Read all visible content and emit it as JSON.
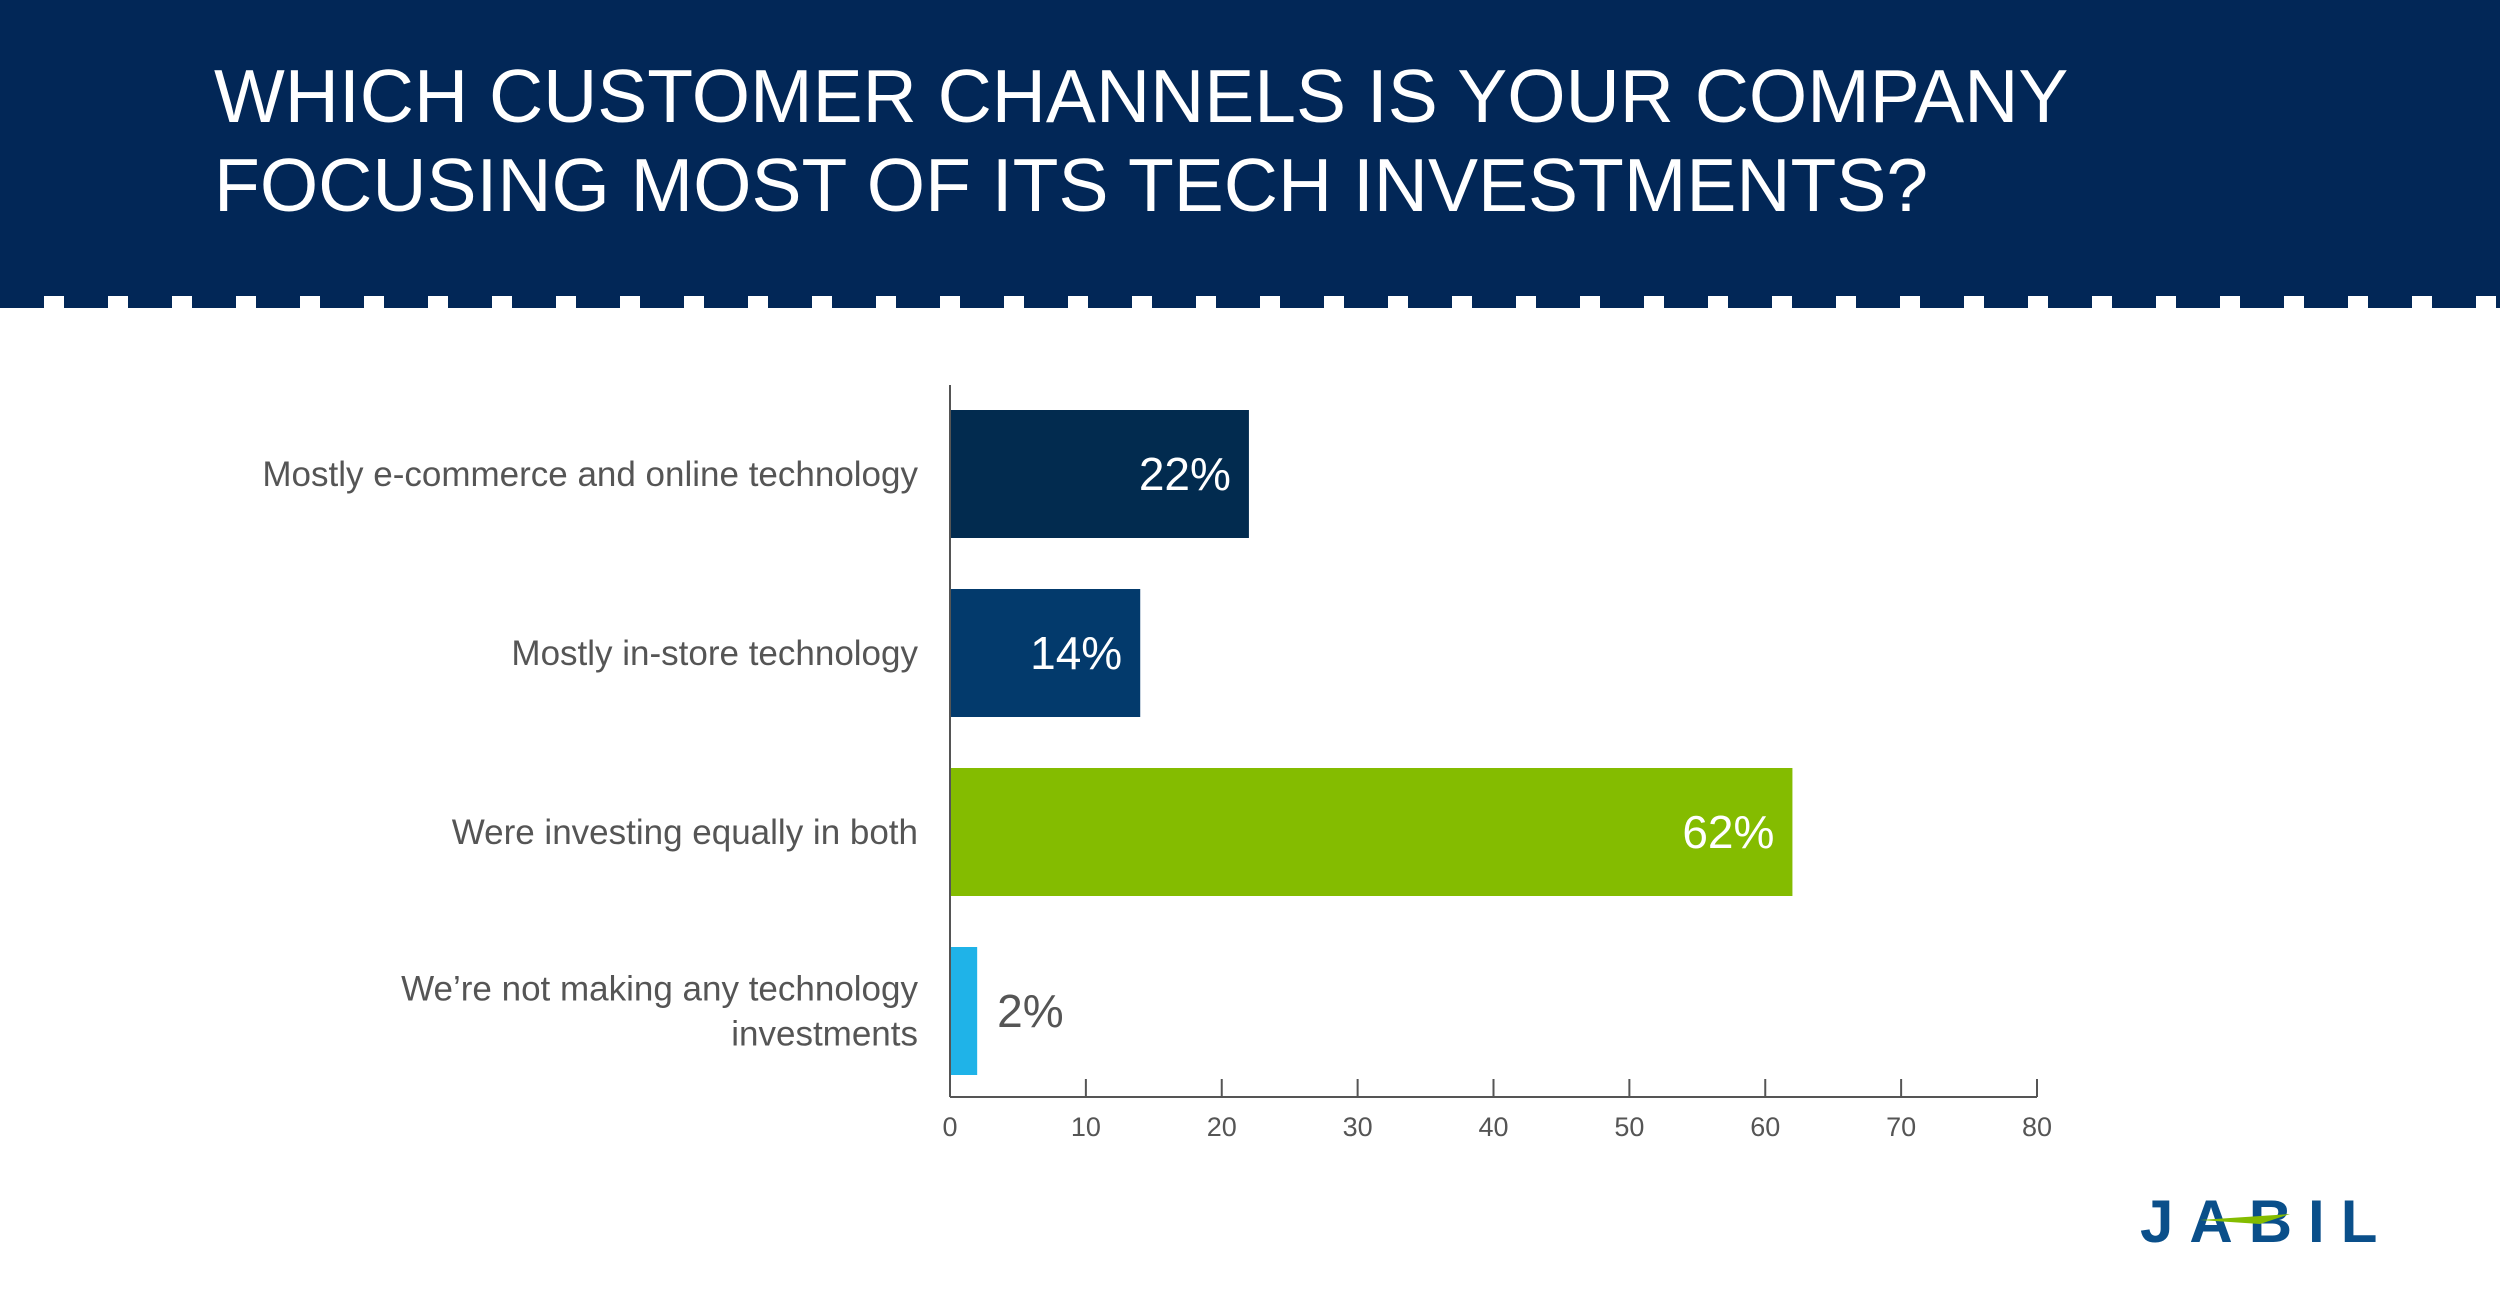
{
  "header": {
    "title_line1": "WHICH CUSTOMER CHANNELS IS YOUR COMPANY",
    "title_line2": "FOCUSING MOST OF ITS TECH INVESTMENTS?"
  },
  "logo": {
    "text": "JABIL",
    "color": "#0a4f8a"
  },
  "colors": {
    "header_bg": "#022757",
    "axis": "#555555",
    "label_text": "#555555"
  },
  "chart_data": {
    "type": "bar",
    "orientation": "horizontal",
    "title": "",
    "xlabel": "",
    "ylabel": "",
    "xlim": [
      0,
      80
    ],
    "x_ticks": [
      "0",
      "10",
      "20",
      "30",
      "40",
      "50",
      "60",
      "70",
      "80"
    ],
    "grid": false,
    "categories": [
      [
        "Mostly e-commerce and online technology"
      ],
      [
        "Mostly in-store technology"
      ],
      [
        "Were investing equally in both"
      ],
      [
        "We’re not making any technology",
        "investments"
      ]
    ],
    "values": [
      22,
      14,
      62,
      2
    ],
    "data_labels": [
      "22%",
      "14%",
      "62%",
      "2%"
    ],
    "bar_colors": [
      "#022b4f",
      "#033a6c",
      "#84bc00",
      "#1fb3e8"
    ],
    "label_colors": [
      "#ffffff",
      "#ffffff",
      "#ffffff",
      "#555555"
    ]
  }
}
